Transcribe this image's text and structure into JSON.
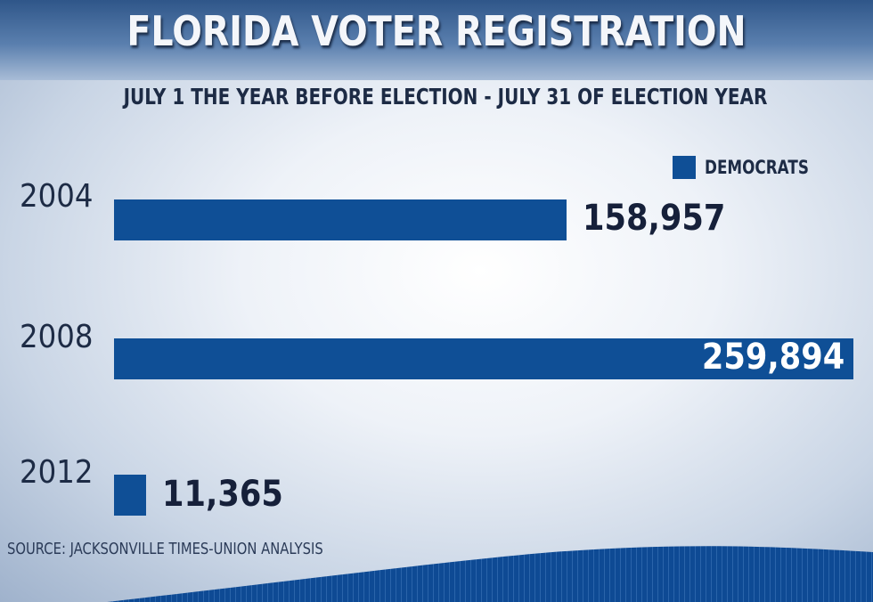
{
  "chart_data": {
    "type": "bar",
    "orientation": "horizontal",
    "title": "FLORIDA VOTER REGISTRATION",
    "subtitle": "JULY 1 THE YEAR BEFORE ELECTION - JULY 31 OF ELECTION YEAR",
    "categories": [
      "2004",
      "2008",
      "2012"
    ],
    "series": [
      {
        "name": "DEMOCRATS",
        "values": [
          158957,
          259894,
          11365
        ],
        "color": "#0f4f96"
      }
    ],
    "value_labels": [
      "158,957",
      "259,894",
      "11,365"
    ],
    "legend": "top-right",
    "grid": false,
    "xlim": [
      0,
      259894
    ],
    "source": "SOURCE: JACKSONVILLE TIMES-UNION ANALYSIS"
  }
}
